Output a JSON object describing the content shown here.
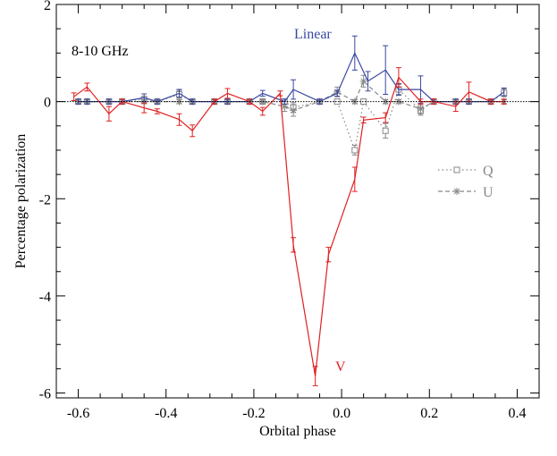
{
  "chart_data": {
    "type": "line",
    "title": "",
    "band_label": "8-10 GHz",
    "xlabel": "Orbital phase",
    "ylabel": "Percentage polarization",
    "xlim": [
      -0.65,
      0.45
    ],
    "ylim": [
      -6.1,
      2.0
    ],
    "x_ticks": [
      -0.6,
      -0.4,
      -0.2,
      0.0,
      0.2,
      0.4
    ],
    "x_tick_labels": [
      "-0.6",
      "-0.4",
      "-0.2",
      "0.0",
      "0.2",
      "0.4"
    ],
    "y_ticks": [
      -6,
      -4,
      -2,
      0,
      2
    ],
    "y_tick_labels": [
      "-6",
      "-4",
      "-2",
      "0",
      "2"
    ],
    "grid": false,
    "legend_position": "right",
    "series": [
      {
        "name": "Linear",
        "label_style": "annotation",
        "color": "#3a48a0",
        "line": "solid",
        "marker": "none",
        "x": [
          -0.6,
          -0.58,
          -0.53,
          -0.5,
          -0.45,
          -0.42,
          -0.37,
          -0.34,
          -0.29,
          -0.26,
          -0.21,
          -0.18,
          -0.13,
          -0.11,
          -0.05,
          -0.01,
          0.03,
          0.06,
          0.1,
          0.13,
          0.18,
          0.21,
          0.26,
          0.29,
          0.34,
          0.37
        ],
        "y": [
          0.0,
          0.0,
          0.0,
          0.0,
          0.08,
          0.0,
          0.17,
          0.0,
          0.0,
          0.0,
          0.0,
          0.17,
          0.0,
          0.25,
          0.0,
          0.17,
          1.0,
          0.42,
          0.65,
          0.25,
          0.25,
          0.0,
          0.0,
          0.0,
          0.0,
          0.2
        ],
        "err": [
          0.05,
          0.05,
          0.05,
          0.05,
          0.08,
          0.05,
          0.08,
          0.05,
          0.05,
          0.05,
          0.05,
          0.06,
          0.05,
          0.2,
          0.05,
          0.06,
          0.35,
          0.2,
          0.5,
          0.12,
          0.28,
          0.05,
          0.05,
          0.05,
          0.05,
          0.08
        ]
      },
      {
        "name": "V",
        "label_style": "annotation",
        "color": "#e02020",
        "line": "solid",
        "marker": "none",
        "x": [
          -0.61,
          -0.58,
          -0.53,
          -0.5,
          -0.45,
          -0.42,
          -0.37,
          -0.34,
          -0.29,
          -0.26,
          -0.21,
          -0.18,
          -0.14,
          -0.11,
          -0.06,
          -0.03,
          0.03,
          0.05,
          0.1,
          0.13,
          0.18,
          0.21,
          0.26,
          0.29,
          0.34,
          0.37
        ],
        "y": [
          0.1,
          0.3,
          -0.25,
          0.0,
          -0.13,
          -0.2,
          -0.37,
          -0.6,
          0.0,
          0.17,
          0.0,
          -0.2,
          0.17,
          -2.95,
          -5.65,
          -3.15,
          -1.6,
          -0.38,
          -0.33,
          0.5,
          0.0,
          0.0,
          -0.1,
          0.2,
          0.0,
          0.0
        ],
        "err": [
          0.08,
          0.08,
          0.15,
          0.05,
          0.1,
          0.05,
          0.12,
          0.12,
          0.05,
          0.1,
          0.05,
          0.08,
          0.05,
          0.15,
          0.2,
          0.15,
          0.25,
          0.06,
          0.1,
          0.2,
          0.05,
          0.05,
          0.1,
          0.2,
          0.05,
          0.05
        ]
      },
      {
        "name": "Q",
        "label_style": "legend",
        "color": "#888888",
        "line": "dotted",
        "marker": "square",
        "x": [
          -0.6,
          -0.58,
          -0.53,
          -0.5,
          -0.45,
          -0.42,
          -0.37,
          -0.34,
          -0.29,
          -0.26,
          -0.21,
          -0.18,
          -0.13,
          -0.11,
          -0.05,
          -0.01,
          0.03,
          0.05,
          0.1,
          0.13,
          0.18,
          0.21,
          0.26,
          0.29,
          0.34,
          0.37
        ],
        "y": [
          0.0,
          0.0,
          0.0,
          0.0,
          0.05,
          0.0,
          0.15,
          0.0,
          0.0,
          0.0,
          0.0,
          0.0,
          0.0,
          -0.12,
          0.0,
          0.0,
          -1.0,
          0.0,
          -0.6,
          0.25,
          -0.18,
          0.0,
          0.0,
          0.0,
          0.0,
          0.18
        ],
        "err": [
          0.05,
          0.05,
          0.05,
          0.05,
          0.06,
          0.05,
          0.08,
          0.05,
          0.05,
          0.05,
          0.05,
          0.05,
          0.05,
          0.1,
          0.05,
          0.05,
          0.1,
          0.05,
          0.15,
          0.1,
          0.1,
          0.05,
          0.05,
          0.05,
          0.05,
          0.08
        ]
      },
      {
        "name": "U",
        "label_style": "legend",
        "color": "#888888",
        "line": "dashed",
        "marker": "asterisk",
        "x": [
          -0.6,
          -0.58,
          -0.53,
          -0.5,
          -0.45,
          -0.42,
          -0.37,
          -0.34,
          -0.29,
          -0.26,
          -0.21,
          -0.18,
          -0.13,
          -0.11,
          -0.05,
          -0.01,
          0.03,
          0.05,
          0.1,
          0.13,
          0.18,
          0.21,
          0.26,
          0.29,
          0.34,
          0.37
        ],
        "y": [
          0.0,
          0.0,
          0.0,
          0.0,
          0.0,
          0.0,
          0.0,
          0.0,
          0.0,
          0.0,
          0.0,
          0.0,
          -0.1,
          -0.18,
          0.0,
          0.2,
          0.0,
          0.42,
          0.0,
          0.0,
          -0.15,
          0.0,
          0.0,
          0.0,
          0.0,
          0.0
        ],
        "err": [
          0.04,
          0.04,
          0.04,
          0.04,
          0.04,
          0.04,
          0.04,
          0.04,
          0.04,
          0.04,
          0.04,
          0.04,
          0.1,
          0.12,
          0.04,
          0.1,
          0.04,
          0.12,
          0.04,
          0.04,
          0.1,
          0.04,
          0.04,
          0.04,
          0.04,
          0.04
        ]
      }
    ]
  }
}
